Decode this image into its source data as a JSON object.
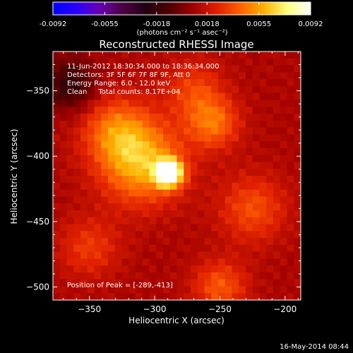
{
  "chart_data": {
    "type": "heatmap",
    "title": "Reconstructed RHESSI Image",
    "xlabel": "Heliocentric X (arcsec)",
    "ylabel": "Heliocentric Y (arcsec)",
    "xlim": [
      -378,
      -188
    ],
    "ylim": [
      -510,
      -320
    ],
    "xticks": [
      -350,
      -300,
      -250,
      -200
    ],
    "yticks": [
      -350,
      -400,
      -450,
      -500
    ],
    "xtick_labels": [
      "−350",
      "−300",
      "−250",
      "−200"
    ],
    "ytick_labels": [
      "−350",
      "−400",
      "−450",
      "−500"
    ],
    "colorbar": {
      "min": -0.0092,
      "max": 0.0092,
      "tick_values": [
        -0.0092,
        -0.0055,
        -0.0018,
        0.0018,
        0.0055,
        0.0092
      ],
      "tick_labels": [
        "-0.0092",
        "-0.0055",
        "-0.0018",
        "0.0018",
        "0.0055",
        "0.0092"
      ],
      "units_label": "(photons cm⁻² s⁻¹ asec⁻²)",
      "colormap": [
        "#0000ff",
        "#2a00ff",
        "#6a00b0",
        "#4a0040",
        "#200010",
        "#500000",
        "#a00000",
        "#e02000",
        "#ff6000",
        "#ffb000",
        "#ffff80",
        "#ffffff"
      ]
    },
    "peak": {
      "x": -289,
      "y": -413,
      "value": 0.0092
    },
    "sources": [
      {
        "x": -289,
        "y": -413,
        "value": 0.0092,
        "sigma": 7
      },
      {
        "x": -310,
        "y": -405,
        "value": 0.0048,
        "sigma": 22
      },
      {
        "x": -255,
        "y": -375,
        "value": 0.0032,
        "sigma": 14
      },
      {
        "x": -330,
        "y": -380,
        "value": 0.003,
        "sigma": 18
      },
      {
        "x": -225,
        "y": -440,
        "value": 0.0025,
        "sigma": 18
      },
      {
        "x": -250,
        "y": -500,
        "value": 0.0028,
        "sigma": 14
      },
      {
        "x": -350,
        "y": -470,
        "value": 0.002,
        "sigma": 16
      },
      {
        "x": -270,
        "y": -350,
        "value": 0.0022,
        "sigma": 16
      }
    ],
    "background_level": 0.0012,
    "negative_region": {
      "x": -365,
      "y": -345,
      "value": -0.003,
      "sigma": 14
    },
    "info_lines": [
      "11-Jun-2012 18:30:34.000 to 18:36:34.000",
      "Detectors: 3F 5F 6F 7F 8F 9F, Att 0",
      "Energy Range: 6.0 - 12.0 keV",
      "Clean     Total counts: 8.17E+04"
    ],
    "peak_label": "Position of Peak = [-289,-413]"
  },
  "timestamp": "16-May-2014 08:44"
}
